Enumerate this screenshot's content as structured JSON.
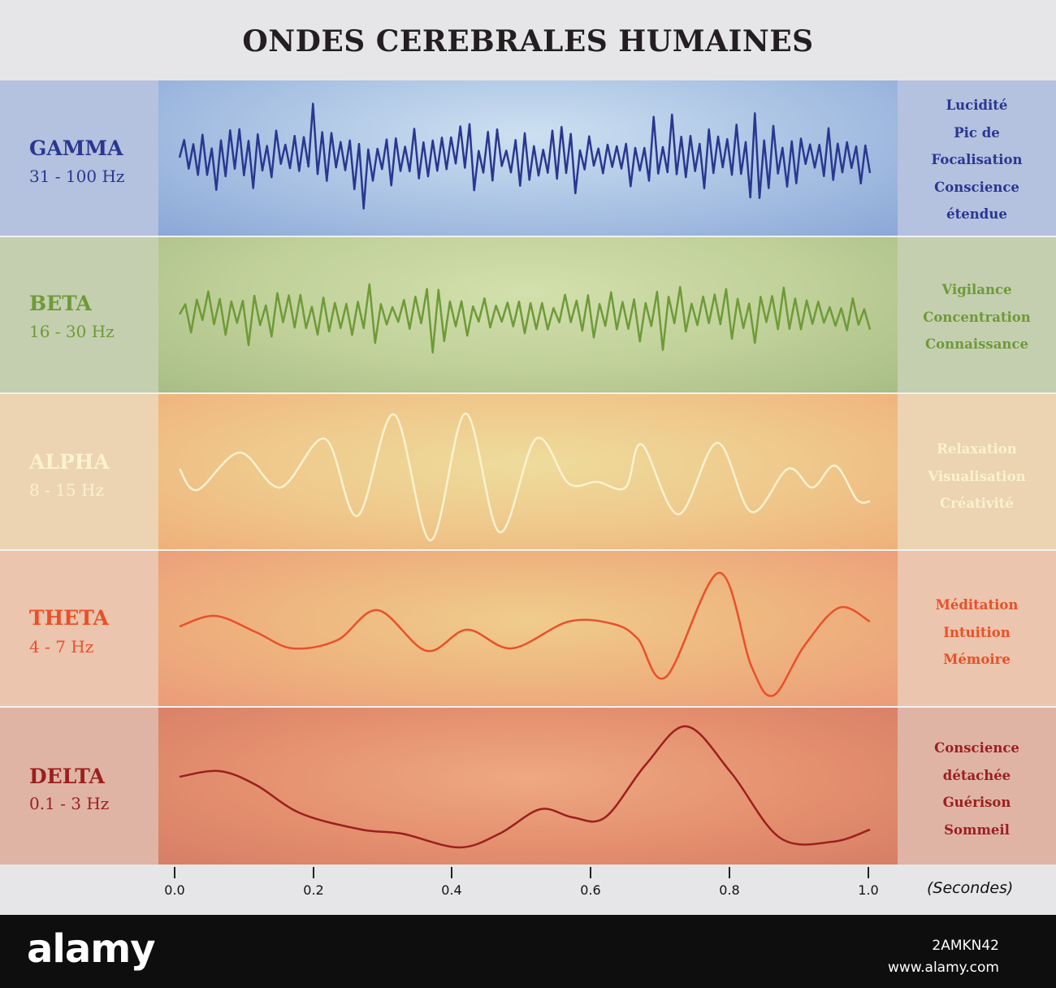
{
  "title": "ONDES CEREBRALES HUMAINES",
  "bands": [
    {
      "name": "GAMMA",
      "range": "31 - 100 Hz",
      "properties": [
        "Lucidité",
        "Pic de",
        "Focalisation",
        "Conscience",
        "étendue"
      ],
      "wave_color": "#2a3790"
    },
    {
      "name": "BETA",
      "range": "16 - 30 Hz",
      "properties": [
        "Vigilance",
        "Concentration",
        "Connaissance"
      ],
      "wave_color": "#6e9a38"
    },
    {
      "name": "ALPHA",
      "range": "8 - 15 Hz",
      "properties": [
        "Relaxation",
        "Visualisation",
        "Créativité"
      ],
      "wave_color": "#fbf2cf"
    },
    {
      "name": "THETA",
      "range": "4 - 7 Hz",
      "properties": [
        "Méditation",
        "Intuition",
        "Mémoire"
      ],
      "wave_color": "#e9502a"
    },
    {
      "name": "DELTA",
      "range": "0.1 - 3 Hz",
      "properties": [
        "Conscience",
        "détachée",
        "Guérison",
        "Sommeil"
      ],
      "wave_color": "#9c1f1f"
    }
  ],
  "axis": {
    "ticks": [
      "0.0",
      "0.2",
      "0.4",
      "0.6",
      "0.8",
      "1.0"
    ],
    "unit": "(Secondes)"
  },
  "footer": {
    "logo": "alamy",
    "image_id": "2AMKN42",
    "site": "www.alamy.com"
  }
}
